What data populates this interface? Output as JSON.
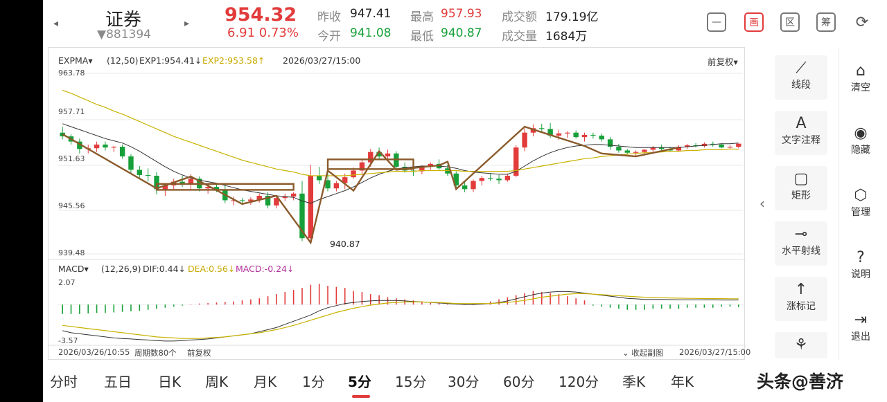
{
  "header": {
    "stock_name": "证券",
    "stock_code": "▼881394",
    "price": "954.32",
    "change": "6.91  0.73%",
    "quotes": [
      {
        "label": "昨收",
        "value": "947.41",
        "color": "normal"
      },
      {
        "label": "今开",
        "value": "941.08",
        "color": "green"
      },
      {
        "label": "最高",
        "value": "957.93",
        "color": "red"
      },
      {
        "label": "最低",
        "value": "940.87",
        "color": "green"
      },
      {
        "label": "成交额",
        "value": "179.19亿",
        "color": "normal"
      },
      {
        "label": "成交量",
        "value": "1684万",
        "color": "normal"
      }
    ],
    "tool_icons": [
      {
        "name": "minimize-icon",
        "glyph": "—"
      },
      {
        "name": "draw-mode-icon",
        "glyph": "画"
      },
      {
        "name": "range-icon",
        "glyph": "区"
      },
      {
        "name": "chip-icon",
        "glyph": "筹"
      },
      {
        "name": "rotate-screen-icon",
        "glyph": "⟳"
      }
    ]
  },
  "indicator_main": {
    "name": "EXPMA▾",
    "params": "(12,50)",
    "exp1": "EXP1:954.41↓",
    "exp2": "EXP2:953.58↑",
    "datetime": "2026/03/27/15:00",
    "adjust": "前复权▾"
  },
  "price_axis": [
    "963.78",
    "957.71",
    "951.63",
    "945.56",
    "939.48"
  ],
  "low_marker": "940.87",
  "indicator_sub": {
    "name": "MACD▾",
    "params": "(12,26,9)",
    "dif": "DIF:0.44↓",
    "dea": "DEA:0.56↓",
    "macd": "MACD:-0.24↓",
    "axis_top": "2.07",
    "axis_bottom": "-3.57"
  },
  "footer": {
    "start": "2026/03/26/10:55",
    "period": "周期数80个",
    "adjust": "前复权",
    "collapse": "⌄ 收起副图",
    "end": "2026/03/27/15:00"
  },
  "side_tools": [
    {
      "label": "线段",
      "glyph": "⟋",
      "name": "segment-tool-icon"
    },
    {
      "label": "文字注释",
      "glyph": "A",
      "name": "text-note-icon"
    },
    {
      "label": "矩形",
      "glyph": "▢",
      "name": "rectangle-tool-icon"
    },
    {
      "label": "水平射线",
      "glyph": "⊸",
      "name": "horizontal-ray-icon"
    },
    {
      "label": "涨标记",
      "glyph": "↑",
      "name": "rise-mark-icon"
    },
    {
      "label": "",
      "glyph": "⚘",
      "name": "more-tool-icon"
    }
  ],
  "side_actions": [
    {
      "label": "清空",
      "glyph": "⌂",
      "name": "clear-icon"
    },
    {
      "label": "隐藏",
      "glyph": "◉",
      "name": "hide-icon"
    },
    {
      "label": "管理",
      "glyph": "⬡",
      "name": "manage-icon"
    },
    {
      "label": "说明",
      "glyph": "?",
      "name": "help-icon"
    },
    {
      "label": "退出",
      "glyph": "⇥",
      "name": "exit-icon"
    }
  ],
  "tabs": [
    "分时",
    "五日",
    "日K",
    "周K",
    "月K",
    "1分",
    "5分",
    "15分",
    "30分",
    "60分",
    "120分",
    "季K",
    "年K"
  ],
  "active_tab": "5分",
  "watermark": "头条@善济",
  "colors": {
    "up": "#e23b3b",
    "down": "#17a03a",
    "exp1": "#333333",
    "exp2": "#c9b200",
    "drawing": "#8b5a2b"
  },
  "chart_data": {
    "type": "candlestick",
    "period_count": 80,
    "y_range": [
      939.48,
      963.78
    ],
    "candles_ohlc": [
      [
        955.8,
        956.6,
        954.9,
        955.3
      ],
      [
        955.3,
        955.6,
        954.2,
        954.6
      ],
      [
        954.6,
        955.0,
        953.0,
        953.6
      ],
      [
        953.6,
        954.2,
        953.0,
        953.7
      ],
      [
        953.7,
        954.6,
        953.2,
        954.2
      ],
      [
        954.2,
        954.6,
        953.4,
        953.8
      ],
      [
        953.8,
        954.0,
        953.2,
        953.9
      ],
      [
        953.9,
        954.2,
        952.3,
        952.6
      ],
      [
        952.6,
        952.9,
        950.2,
        950.8
      ],
      [
        950.8,
        951.3,
        949.6,
        950.1
      ],
      [
        950.1,
        951.0,
        949.2,
        950.0
      ],
      [
        950.0,
        950.5,
        947.5,
        948.2
      ],
      [
        948.2,
        949.0,
        947.3,
        948.7
      ],
      [
        948.7,
        949.6,
        948.2,
        949.2
      ],
      [
        949.2,
        950.0,
        948.5,
        948.8
      ],
      [
        948.8,
        950.2,
        948.2,
        949.6
      ],
      [
        949.6,
        949.9,
        947.9,
        948.3
      ],
      [
        948.3,
        949.0,
        947.6,
        948.5
      ],
      [
        948.5,
        949.0,
        947.8,
        948.1
      ],
      [
        948.1,
        948.8,
        946.3,
        946.7
      ],
      [
        946.7,
        947.2,
        946.0,
        946.7
      ],
      [
        946.7,
        947.0,
        946.3,
        946.6
      ],
      [
        946.6,
        947.1,
        946.1,
        946.8
      ],
      [
        946.8,
        947.6,
        946.4,
        947.3
      ],
      [
        947.3,
        947.8,
        945.6,
        946.0
      ],
      [
        946.0,
        947.2,
        945.6,
        947.0
      ],
      [
        947.0,
        947.6,
        946.6,
        947.2
      ],
      [
        947.2,
        947.8,
        946.7,
        947.6
      ],
      [
        947.6,
        949.3,
        941.2,
        941.6
      ],
      [
        941.6,
        951.5,
        940.87,
        950.0
      ],
      [
        950.0,
        951.2,
        948.9,
        949.4
      ],
      [
        949.4,
        950.4,
        947.9,
        948.3
      ],
      [
        948.3,
        949.3,
        947.9,
        949.0
      ],
      [
        949.0,
        950.3,
        948.2,
        949.8
      ],
      [
        949.8,
        951.1,
        949.6,
        950.7
      ],
      [
        950.7,
        952.2,
        950.1,
        951.8
      ],
      [
        951.8,
        953.6,
        951.2,
        953.2
      ],
      [
        953.2,
        953.8,
        952.2,
        952.6
      ],
      [
        952.6,
        953.5,
        952.0,
        953.0
      ],
      [
        953.0,
        953.3,
        951.0,
        951.2
      ],
      [
        951.2,
        951.8,
        950.4,
        950.7
      ],
      [
        950.7,
        951.2,
        950.0,
        950.6
      ],
      [
        950.6,
        951.4,
        950.2,
        951.2
      ],
      [
        951.2,
        951.8,
        950.8,
        951.6
      ],
      [
        951.6,
        952.2,
        950.8,
        951.0
      ],
      [
        951.0,
        951.5,
        950.0,
        950.3
      ],
      [
        950.3,
        950.6,
        948.3,
        948.7
      ],
      [
        948.7,
        949.3,
        947.8,
        948.2
      ],
      [
        948.2,
        949.5,
        947.8,
        949.3
      ],
      [
        949.3,
        950.0,
        948.7,
        949.7
      ],
      [
        949.7,
        950.3,
        949.3,
        949.6
      ],
      [
        949.6,
        950.1,
        948.9,
        949.4
      ],
      [
        949.4,
        950.3,
        949.2,
        950.0
      ],
      [
        950.0,
        954.1,
        949.8,
        953.8
      ],
      [
        953.8,
        956.4,
        953.3,
        955.8
      ],
      [
        955.8,
        956.9,
        955.3,
        956.4
      ],
      [
        956.4,
        957.0,
        955.8,
        956.3
      ],
      [
        956.3,
        957.1,
        955.1,
        955.4
      ],
      [
        955.4,
        956.2,
        954.8,
        955.7
      ],
      [
        955.7,
        956.0,
        955.1,
        955.8
      ],
      [
        955.8,
        956.1,
        955.0,
        955.2
      ],
      [
        955.2,
        955.8,
        954.6,
        955.5
      ],
      [
        955.5,
        955.8,
        955.0,
        955.4
      ],
      [
        955.4,
        955.7,
        954.6,
        954.9
      ],
      [
        954.9,
        955.2,
        953.5,
        953.9
      ],
      [
        953.9,
        954.3,
        953.1,
        953.4
      ],
      [
        953.4,
        953.6,
        952.9,
        953.1
      ],
      [
        953.1,
        953.4,
        952.6,
        953.2
      ],
      [
        953.2,
        953.6,
        952.9,
        953.5
      ],
      [
        953.5,
        954.0,
        953.2,
        953.8
      ],
      [
        953.8,
        954.2,
        953.4,
        953.6
      ],
      [
        953.6,
        953.9,
        953.2,
        953.4
      ],
      [
        953.4,
        954.1,
        953.2,
        953.9
      ],
      [
        953.9,
        954.3,
        953.6,
        954.1
      ],
      [
        954.1,
        954.4,
        953.8,
        954.0
      ],
      [
        954.0,
        954.5,
        953.8,
        954.3
      ],
      [
        954.3,
        954.6,
        953.9,
        954.2
      ],
      [
        954.2,
        954.4,
        953.7,
        953.8
      ],
      [
        953.8,
        954.1,
        953.6,
        953.9
      ],
      [
        953.9,
        954.3,
        953.7,
        954.32
      ]
    ],
    "exp1": [
      957.0,
      956.6,
      956.2,
      955.8,
      955.4,
      955.0,
      954.7,
      954.4,
      953.9,
      953.3,
      952.6,
      951.9,
      951.2,
      950.6,
      950.1,
      949.7,
      949.4,
      949.2,
      949.0,
      948.7,
      948.4,
      948.1,
      947.9,
      947.7,
      947.5,
      947.3,
      947.2,
      947.1,
      946.6,
      946.3,
      946.8,
      947.2,
      947.6,
      948.0,
      948.5,
      949.1,
      949.7,
      950.2,
      950.6,
      950.9,
      951.1,
      951.2,
      951.3,
      951.3,
      951.3,
      951.2,
      951.0,
      950.7,
      950.5,
      950.4,
      950.3,
      950.2,
      950.2,
      950.6,
      951.3,
      952.0,
      952.6,
      953.1,
      953.5,
      953.8,
      954.0,
      954.1,
      954.2,
      954.2,
      954.1,
      954.0,
      953.9,
      953.8,
      953.8,
      953.8,
      953.8,
      953.8,
      953.8,
      953.9,
      954.0,
      954.1,
      954.2,
      954.3,
      954.3,
      954.41
    ],
    "exp2": [
      961.5,
      961.1,
      960.6,
      960.1,
      959.6,
      959.2,
      958.7,
      958.3,
      957.8,
      957.3,
      956.8,
      956.3,
      955.8,
      955.3,
      954.9,
      954.5,
      954.1,
      953.7,
      953.3,
      952.9,
      952.5,
      952.1,
      951.8,
      951.5,
      951.2,
      950.9,
      950.7,
      950.5,
      950.2,
      950.0,
      950.0,
      950.0,
      950.0,
      950.0,
      950.1,
      950.2,
      950.3,
      950.4,
      950.5,
      950.6,
      950.6,
      950.6,
      950.7,
      950.7,
      950.7,
      950.7,
      950.7,
      950.6,
      950.6,
      950.6,
      950.6,
      950.6,
      950.6,
      950.7,
      950.9,
      951.1,
      951.3,
      951.5,
      951.7,
      951.9,
      952.1,
      952.3,
      952.4,
      952.6,
      952.7,
      952.8,
      952.9,
      953.0,
      953.1,
      953.1,
      953.2,
      953.3,
      953.3,
      953.4,
      953.4,
      953.5,
      953.5,
      953.5,
      953.6,
      953.58
    ],
    "macd_range": [
      -3.57,
      2.07
    ],
    "macd_hist": [
      -0.9,
      -0.9,
      -0.9,
      -0.85,
      -0.8,
      -0.8,
      -0.75,
      -0.7,
      -0.65,
      -0.6,
      -0.5,
      -0.4,
      -0.3,
      -0.2,
      -0.1,
      0.05,
      0.1,
      0.15,
      0.2,
      0.25,
      0.3,
      0.4,
      0.5,
      0.6,
      0.8,
      1.0,
      1.2,
      1.4,
      1.6,
      1.9,
      2.0,
      1.8,
      1.7,
      1.6,
      1.3,
      1.2,
      1.0,
      0.9,
      0.7,
      0.6,
      0.5,
      0.4,
      0.3,
      0.2,
      0.15,
      0.1,
      0.1,
      0.05,
      0.1,
      0.15,
      0.3,
      0.5,
      0.7,
      0.9,
      1.1,
      1.3,
      1.2,
      1.1,
      1.0,
      0.8,
      0.6,
      0.4,
      -0.1,
      -0.2,
      -0.3,
      -0.4,
      -0.5,
      -0.5,
      -0.5,
      -0.4,
      -0.4,
      -0.4,
      -0.4,
      -0.3,
      -0.3,
      -0.3,
      -0.3,
      -0.2,
      -0.2,
      -0.24
    ],
    "dif": [
      -2.5,
      -2.7,
      -2.8,
      -2.9,
      -3.0,
      -3.1,
      -3.2,
      -3.25,
      -3.3,
      -3.35,
      -3.4,
      -3.45,
      -3.5,
      -3.5,
      -3.45,
      -3.4,
      -3.35,
      -3.3,
      -3.2,
      -3.1,
      -3.0,
      -2.9,
      -2.8,
      -2.6,
      -2.4,
      -2.2,
      -1.9,
      -1.6,
      -1.3,
      -1.0,
      -0.6,
      -0.3,
      -0.1,
      0.1,
      0.2,
      0.3,
      0.35,
      0.4,
      0.4,
      0.4,
      0.35,
      0.3,
      0.25,
      0.2,
      0.15,
      0.1,
      0.05,
      0.0,
      0.0,
      0.05,
      0.1,
      0.2,
      0.35,
      0.55,
      0.75,
      0.95,
      1.1,
      1.2,
      1.25,
      1.25,
      1.2,
      1.1,
      1.0,
      0.9,
      0.8,
      0.7,
      0.6,
      0.55,
      0.5,
      0.5,
      0.5,
      0.48,
      0.46,
      0.45,
      0.45,
      0.45,
      0.45,
      0.44,
      0.44,
      0.44
    ],
    "dea": [
      -2.0,
      -2.1,
      -2.2,
      -2.3,
      -2.4,
      -2.5,
      -2.6,
      -2.7,
      -2.8,
      -2.9,
      -3.0,
      -3.1,
      -3.15,
      -3.2,
      -3.25,
      -3.25,
      -3.25,
      -3.2,
      -3.15,
      -3.1,
      -3.0,
      -2.9,
      -2.8,
      -2.7,
      -2.55,
      -2.4,
      -2.2,
      -2.0,
      -1.75,
      -1.5,
      -1.25,
      -1.0,
      -0.75,
      -0.55,
      -0.35,
      -0.2,
      -0.05,
      0.05,
      0.15,
      0.2,
      0.25,
      0.25,
      0.25,
      0.2,
      0.2,
      0.15,
      0.1,
      0.1,
      0.1,
      0.1,
      0.1,
      0.15,
      0.2,
      0.3,
      0.4,
      0.55,
      0.7,
      0.8,
      0.9,
      1.0,
      1.05,
      1.05,
      1.0,
      0.95,
      0.9,
      0.85,
      0.8,
      0.75,
      0.7,
      0.68,
      0.66,
      0.64,
      0.62,
      0.6,
      0.59,
      0.58,
      0.57,
      0.57,
      0.56,
      0.56
    ]
  }
}
